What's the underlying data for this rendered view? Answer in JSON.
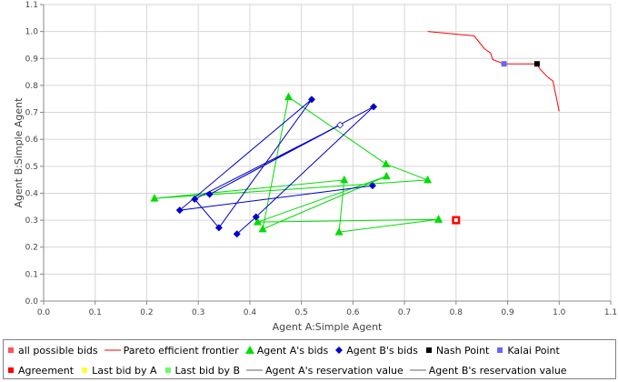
{
  "chart_data": {
    "type": "scatter",
    "title": "",
    "xlabel": "Agent A:Simple Agent",
    "ylabel": "Agent B:Simple Agent",
    "xlim": [
      0.0,
      1.1
    ],
    "ylim": [
      0.0,
      1.1
    ],
    "xticks": [
      "0.0",
      "0.1",
      "0.2",
      "0.3",
      "0.4",
      "0.5",
      "0.6",
      "0.7",
      "0.8",
      "0.9",
      "1.0",
      "1.1"
    ],
    "yticks": [
      "0.0",
      "0.1",
      "0.2",
      "0.3",
      "0.4",
      "0.5",
      "0.6",
      "0.7",
      "0.8",
      "0.9",
      "1.0",
      "1.1"
    ],
    "grid": true,
    "legend_position": "bottom",
    "series": [
      {
        "name": "Pareto efficient frontier",
        "kind": "line",
        "color": "#ff0000",
        "x": [
          0.745,
          0.835,
          0.855,
          0.867,
          0.871,
          0.893,
          0.957,
          0.963,
          0.977,
          0.988,
          1.0
        ],
        "y": [
          1.0,
          0.984,
          0.936,
          0.92,
          0.896,
          0.88,
          0.88,
          0.86,
          0.832,
          0.816,
          0.704
        ]
      },
      {
        "name": "Agent A's bids",
        "kind": "line-marker",
        "color": "#00dd00",
        "marker": "triangle",
        "x": [
          0.766,
          0.415,
          0.665,
          0.425,
          0.475,
          0.664,
          0.745,
          0.215,
          0.583,
          0.573,
          0.766
        ],
        "y": [
          0.303,
          0.293,
          0.463,
          0.267,
          0.757,
          0.508,
          0.449,
          0.381,
          0.449,
          0.256,
          0.303
        ]
      },
      {
        "name": "Agent B's bids",
        "kind": "line-marker",
        "color": "#0000cc",
        "marker": "diamond",
        "x": [
          0.638,
          0.264,
          0.52,
          0.34,
          0.293,
          0.575,
          0.322,
          0.64,
          0.412,
          0.375
        ],
        "y": [
          0.428,
          0.337,
          0.748,
          0.272,
          0.378,
          0.653,
          0.396,
          0.721,
          0.312,
          0.249
        ]
      },
      {
        "name": "Nash Point",
        "kind": "point",
        "color": "#000000",
        "x": [
          0.957
        ],
        "y": [
          0.88
        ]
      },
      {
        "name": "Kalai Point",
        "kind": "point",
        "color": "#6666ff",
        "x": [
          0.893
        ],
        "y": [
          0.88
        ]
      },
      {
        "name": "Agreement",
        "kind": "point",
        "color": "#ff0000",
        "x": [
          0.8
        ],
        "y": [
          0.3
        ]
      }
    ],
    "legend": [
      [
        {
          "label": "all possible bids",
          "symbol": "square",
          "color": "#ff5555"
        },
        {
          "label": "Pareto efficient frontier",
          "symbol": "line",
          "color": "#ff0000"
        },
        {
          "label": "Agent A's bids",
          "symbol": "triangle",
          "color": "#00dd00"
        },
        {
          "label": "Agent B's bids",
          "symbol": "diamond",
          "color": "#0000cc"
        },
        {
          "label": "Nash Point",
          "symbol": "square",
          "color": "#000000"
        },
        {
          "label": "Kalai Point",
          "symbol": "square",
          "color": "#6666ff"
        }
      ],
      [
        {
          "label": "Agreement",
          "symbol": "square",
          "color": "#ff0000"
        },
        {
          "label": "Last bid by A",
          "symbol": "square",
          "color": "#ffff33"
        },
        {
          "label": "Last bid by B",
          "symbol": "square",
          "color": "#66ff66"
        },
        {
          "label": "Agent A's reservation value",
          "symbol": "line",
          "color": "#666666"
        },
        {
          "label": "Agent B's reservation value",
          "symbol": "line",
          "color": "#666666"
        }
      ]
    ]
  }
}
